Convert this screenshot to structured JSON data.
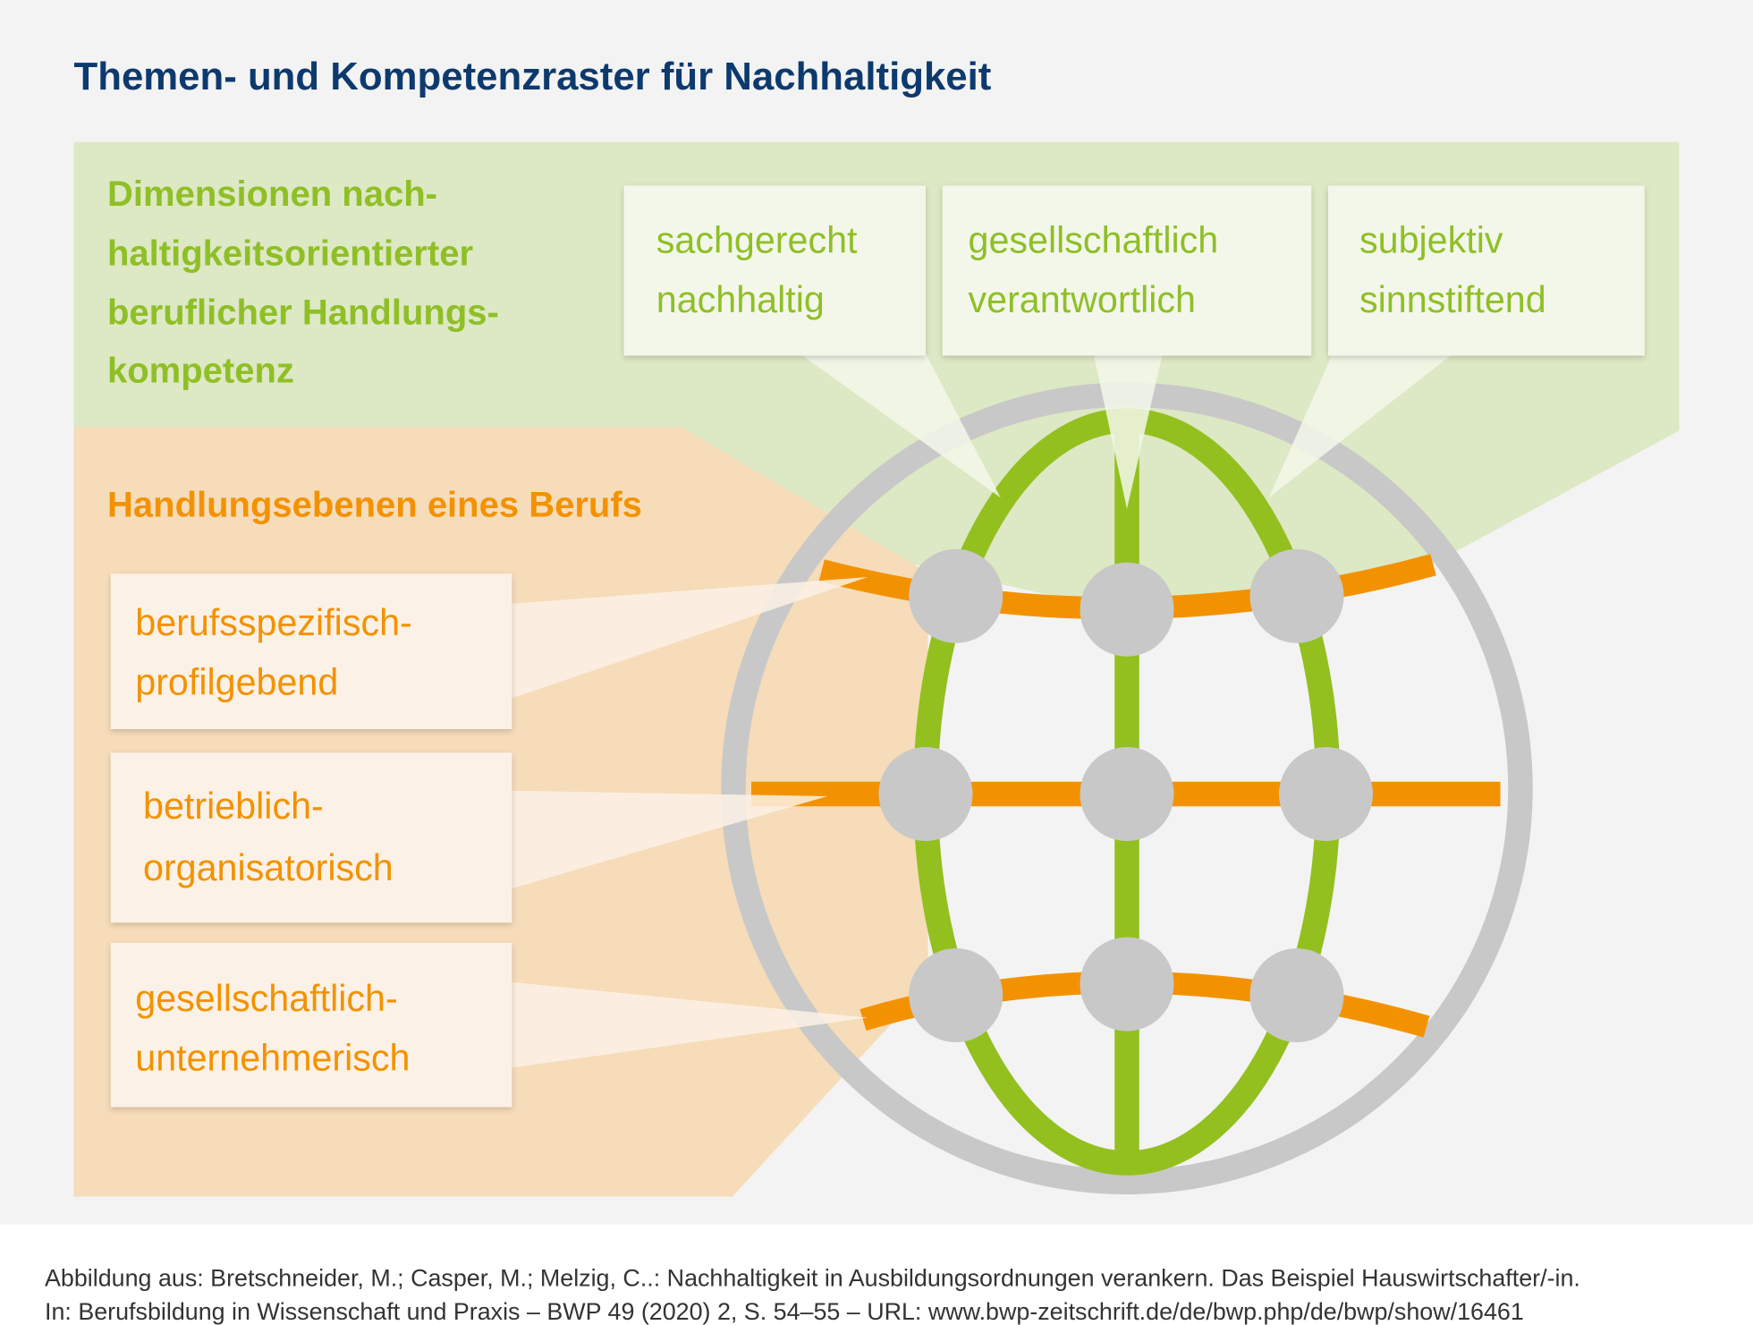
{
  "title": "Themen- und Kompetenzraster für Nachhaltigkeit",
  "dimensions": {
    "heading": [
      "Dimensionen nach-",
      "haltigkeitsorientierter",
      "beruflicher Handlungs-",
      "kompetenz"
    ],
    "items": [
      [
        "sachgerecht",
        "nachhaltig"
      ],
      [
        "gesellschaftlich",
        "verantwortlich"
      ],
      [
        "subjektiv",
        "sinnstiftend"
      ]
    ]
  },
  "levels": {
    "heading": "Handlungsebenen eines Berufs",
    "items": [
      [
        "berufsspezifisch-",
        "profilgebend"
      ],
      [
        "betrieblich-",
        "organisatorisch"
      ],
      [
        "gesellschaftlich-",
        "unternehmerisch"
      ]
    ]
  },
  "source": [
    "Abbildung aus: Bretschneider, M.; Casper, M.; Melzig, C..: Nachhaltigkeit in Ausbildungsordnungen verankern. Das Beispiel Hauswirtschafter/-in.",
    "In: Berufsbildung in Wissenschaft und Praxis – BWP 49 (2020) 2, S. 54–55 – URL: www.bwp-zeitschrift.de/de/bwp.php/de/bwp/show/16461"
  ]
}
